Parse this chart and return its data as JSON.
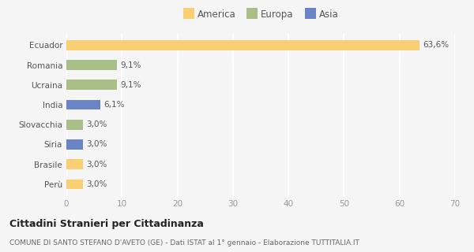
{
  "categories": [
    "Perù",
    "Brasile",
    "Siria",
    "Slovacchia",
    "India",
    "Ucraina",
    "Romania",
    "Ecuador"
  ],
  "values": [
    3.0,
    3.0,
    3.0,
    3.0,
    6.1,
    9.1,
    9.1,
    63.6
  ],
  "colors": [
    "#f9cf74",
    "#f9cf74",
    "#6b84c4",
    "#a8bf87",
    "#6b84c4",
    "#a8bf87",
    "#a8bf87",
    "#f9cf74"
  ],
  "labels": [
    "3,0%",
    "3,0%",
    "3,0%",
    "3,0%",
    "6,1%",
    "9,1%",
    "9,1%",
    "63,6%"
  ],
  "xlim": [
    0,
    70
  ],
  "xticks": [
    0,
    10,
    20,
    30,
    40,
    50,
    60,
    70
  ],
  "legend_labels": [
    "America",
    "Europa",
    "Asia"
  ],
  "legend_colors": [
    "#f9cf74",
    "#a8bf87",
    "#6b84c4"
  ],
  "title": "Cittadini Stranieri per Cittadinanza",
  "subtitle": "COMUNE DI SANTO STEFANO D'AVETO (GE) - Dati ISTAT al 1° gennaio - Elaborazione TUTTITALIA.IT",
  "bg_color": "#f5f5f5",
  "grid_color": "#ffffff",
  "bar_height": 0.5
}
